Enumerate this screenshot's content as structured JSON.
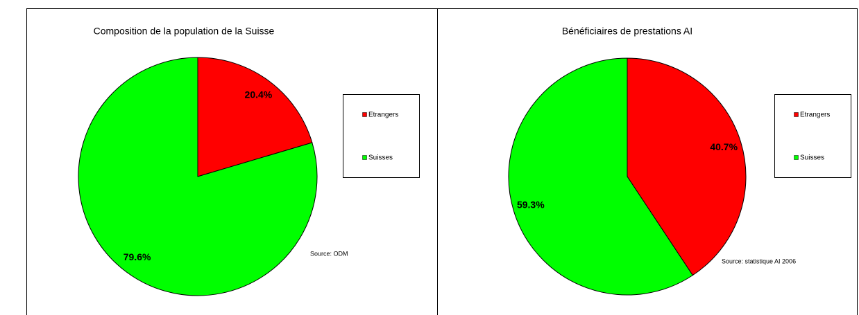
{
  "chart_data": [
    {
      "type": "pie",
      "title": "Composition de la population de la Suisse",
      "categories": [
        "Etrangers",
        "Suisses"
      ],
      "values": [
        20.4,
        79.6
      ],
      "value_labels": [
        "20.4%",
        "79.6%"
      ],
      "colors": [
        "#ff0000",
        "#00ff00"
      ],
      "annotation": "Source: ODM",
      "legend": "right"
    },
    {
      "type": "pie",
      "title": "Bénéficiaires de prestations AI",
      "categories": [
        "Etrangers",
        "Suisses"
      ],
      "values": [
        40.7,
        59.3
      ],
      "value_labels": [
        "40.7%",
        "59.3%"
      ],
      "colors": [
        "#ff0000",
        "#00ff00"
      ],
      "annotation": "Source: statistique  AI 2006",
      "legend": "right"
    }
  ]
}
